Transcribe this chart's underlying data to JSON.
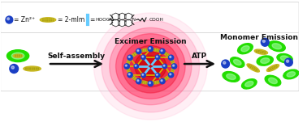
{
  "bg_color": "#ffffff",
  "zn_color": "#1a3fc4",
  "mim_color": "#c8b820",
  "green_blob_color": "#22dd00",
  "mof_frame_color": "#d4b800",
  "mof_node_color": "#1a3fc4",
  "mof_linker_color": "#66ccff",
  "arrow_color": "#111111",
  "label_excimer": "Excimer Emission",
  "label_monomer": "Monomer Emission",
  "label_self_assembly": "Self-assembly",
  "label_atp": "ATP",
  "legend_zn_sym": "= Zn²⁺",
  "legend_mim_sym": "= 2-mIm",
  "font_size_labels": 6.5,
  "font_size_legend": 5.5
}
